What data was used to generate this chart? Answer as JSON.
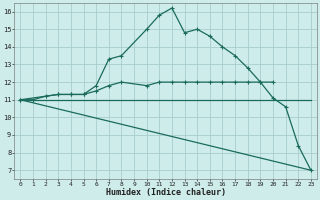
{
  "xlabel": "Humidex (Indice chaleur)",
  "x_ticks": [
    0,
    1,
    2,
    3,
    4,
    5,
    6,
    7,
    8,
    9,
    10,
    11,
    12,
    13,
    14,
    15,
    16,
    17,
    18,
    19,
    20,
    21,
    22,
    23
  ],
  "y_ticks": [
    7,
    8,
    9,
    10,
    11,
    12,
    13,
    14,
    15,
    16
  ],
  "xlim": [
    -0.5,
    23.5
  ],
  "ylim": [
    6.5,
    16.5
  ],
  "background_color": "#ceecea",
  "grid_color": "#a8ceca",
  "line_color": "#1a6b5c",
  "line1_x": [
    0,
    1,
    2,
    3,
    4,
    5,
    6,
    7,
    8,
    10,
    11,
    12,
    13,
    14,
    15,
    16,
    17,
    18,
    19,
    20,
    21,
    22,
    23
  ],
  "line1_y": [
    11.0,
    11.0,
    11.2,
    11.3,
    11.3,
    11.3,
    11.8,
    13.3,
    13.5,
    15.0,
    15.8,
    16.2,
    14.8,
    15.0,
    14.6,
    14.0,
    13.5,
    12.8,
    12.0,
    11.1,
    10.6,
    8.4,
    7.0
  ],
  "line2_x": [
    0,
    3,
    4,
    5,
    6,
    7,
    8,
    10,
    11,
    12,
    13,
    14,
    15,
    16,
    17,
    18,
    19,
    20
  ],
  "line2_y": [
    11.0,
    11.3,
    11.3,
    11.3,
    11.5,
    11.8,
    12.0,
    11.8,
    12.0,
    12.0,
    12.0,
    12.0,
    12.0,
    12.0,
    12.0,
    12.0,
    12.0,
    12.0
  ],
  "line3_x": [
    0,
    23
  ],
  "line3_y": [
    11.0,
    11.0
  ],
  "line4_x": [
    0,
    23
  ],
  "line4_y": [
    11.0,
    7.0
  ]
}
